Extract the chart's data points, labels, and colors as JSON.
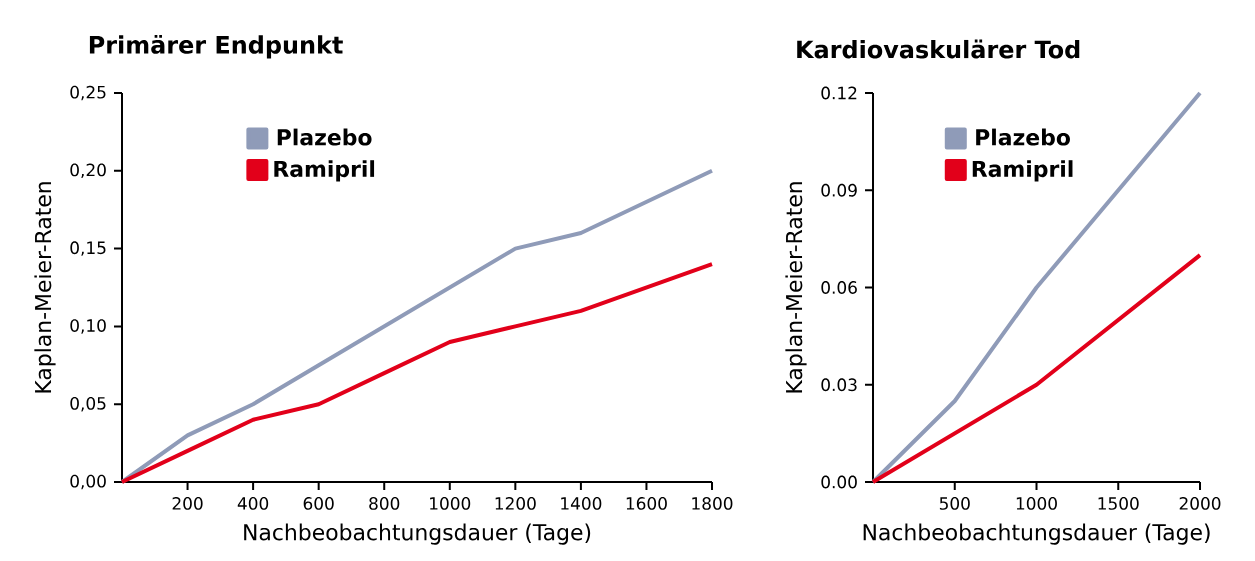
{
  "chart_data": [
    {
      "type": "line",
      "title": "Primärer Endpunkt",
      "xlabel": "Nachbeobachtungsdauer (Tage)",
      "ylabel": "Kaplan-Meier-Raten",
      "x": [
        0,
        200,
        400,
        600,
        800,
        1000,
        1200,
        1400,
        1800
      ],
      "series": [
        {
          "name": "Plazebo",
          "color": "#8f9bb8",
          "values": [
            0,
            0.03,
            0.05,
            0.075,
            0.1,
            0.125,
            0.15,
            0.16,
            0.2
          ]
        },
        {
          "name": "Ramipril",
          "color": "#e2001a",
          "values": [
            0,
            0.02,
            0.04,
            0.05,
            0.07,
            0.09,
            0.1,
            0.11,
            0.14
          ]
        }
      ],
      "xlim": [
        0,
        1800
      ],
      "ylim": [
        0,
        0.25
      ],
      "xticks": [
        200,
        400,
        600,
        800,
        1000,
        1200,
        1400,
        1600,
        1800
      ],
      "yticks": [
        {
          "value": 0,
          "label": "0,00"
        },
        {
          "value": 0.05,
          "label": "0,05"
        },
        {
          "value": 0.1,
          "label": "0,10"
        },
        {
          "value": 0.15,
          "label": "0,15"
        },
        {
          "value": 0.2,
          "label": "0,20"
        },
        {
          "value": 0.25,
          "label": "0,25"
        }
      ],
      "legend": "top left",
      "marker": "none",
      "line_style": "solid"
    },
    {
      "type": "line",
      "title": "Kardiovaskulärer Tod",
      "xlabel": "Nachbeobachtungsdauer (Tage)",
      "ylabel": "Kaplan-Meier-Raten",
      "x": [
        0,
        500,
        1000,
        1500,
        2000
      ],
      "series": [
        {
          "name": "Plazebo",
          "color": "#8f9bb8",
          "values": [
            0,
            0.025,
            0.06,
            0.09,
            0.12
          ]
        },
        {
          "name": "Ramipril",
          "color": "#e2001a",
          "values": [
            0,
            0.015,
            0.03,
            0.05,
            0.07
          ]
        }
      ],
      "xlim": [
        0,
        2000
      ],
      "ylim": [
        0,
        0.12
      ],
      "xticks": [
        500,
        1000,
        1500,
        2000
      ],
      "yticks": [
        {
          "value": 0,
          "label": "0.00"
        },
        0.03,
        0.06,
        0.09,
        0.12
      ],
      "legend": "top left",
      "marker": "none",
      "line_style": "solid"
    }
  ]
}
